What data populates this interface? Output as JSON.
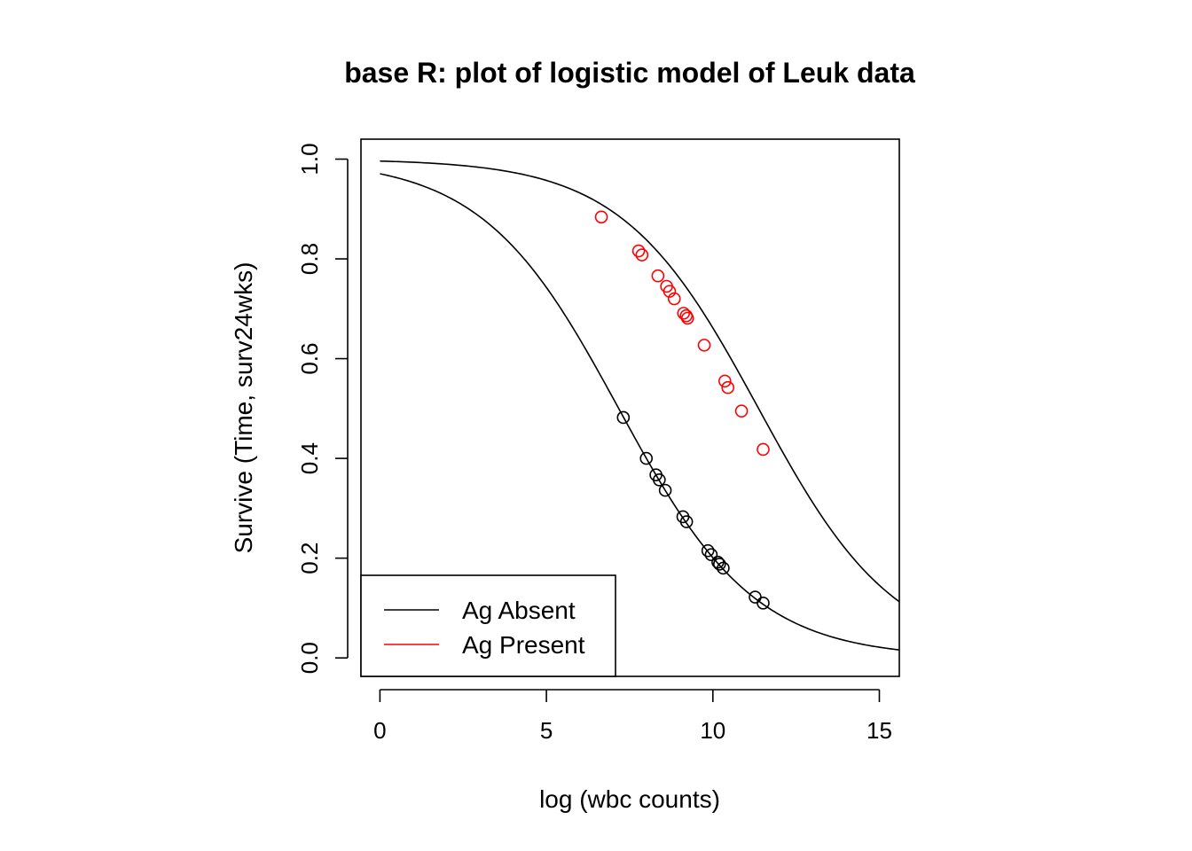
{
  "chart_data": {
    "type": "line",
    "title": "base R: plot of logistic model of Leuk data",
    "xlabel": "log (wbc counts)",
    "ylabel": "Survive (Time, surv24wks)",
    "xlim": [
      -0.57,
      15.6
    ],
    "ylim": [
      -0.037,
      1.04
    ],
    "x_ticks": [
      0,
      5,
      10,
      15
    ],
    "y_ticks": [
      0.0,
      0.2,
      0.4,
      0.6,
      0.8,
      1.0
    ],
    "x_tick_labels": [
      "0",
      "5",
      "10",
      "15"
    ],
    "y_tick_labels": [
      "0.0",
      "0.2",
      "0.4",
      "0.6",
      "0.8",
      "1.0"
    ],
    "grid": false,
    "legend_position": "bottom-left",
    "series": [
      {
        "name": "Ag Absent",
        "color": "#000000",
        "curve": {
          "model": "logistic",
          "intercept": 3.5,
          "slope": -0.488
        },
        "points": [
          {
            "x": 7.31,
            "y": 0.482
          },
          {
            "x": 8.0,
            "y": 0.4
          },
          {
            "x": 8.29,
            "y": 0.367
          },
          {
            "x": 8.39,
            "y": 0.357
          },
          {
            "x": 8.57,
            "y": 0.336
          },
          {
            "x": 9.1,
            "y": 0.283
          },
          {
            "x": 9.21,
            "y": 0.273
          },
          {
            "x": 9.85,
            "y": 0.215
          },
          {
            "x": 9.95,
            "y": 0.207
          },
          {
            "x": 10.15,
            "y": 0.192
          },
          {
            "x": 10.2,
            "y": 0.188
          },
          {
            "x": 10.31,
            "y": 0.18
          },
          {
            "x": 11.27,
            "y": 0.122
          },
          {
            "x": 11.51,
            "y": 0.11
          }
        ]
      },
      {
        "name": "Ag Present",
        "color": "#ff0000",
        "curve": {
          "model": "logistic",
          "intercept": 5.55,
          "slope": -0.488
        },
        "points": [
          {
            "x": 6.65,
            "y": 0.884
          },
          {
            "x": 7.77,
            "y": 0.816
          },
          {
            "x": 7.87,
            "y": 0.808
          },
          {
            "x": 8.35,
            "y": 0.766
          },
          {
            "x": 8.61,
            "y": 0.745
          },
          {
            "x": 8.7,
            "y": 0.735
          },
          {
            "x": 8.84,
            "y": 0.72
          },
          {
            "x": 9.12,
            "y": 0.691
          },
          {
            "x": 9.2,
            "y": 0.686
          },
          {
            "x": 9.24,
            "y": 0.681
          },
          {
            "x": 9.74,
            "y": 0.627
          },
          {
            "x": 10.36,
            "y": 0.555
          },
          {
            "x": 10.45,
            "y": 0.542
          },
          {
            "x": 10.86,
            "y": 0.495
          },
          {
            "x": 11.51,
            "y": 0.418
          }
        ]
      }
    ]
  }
}
